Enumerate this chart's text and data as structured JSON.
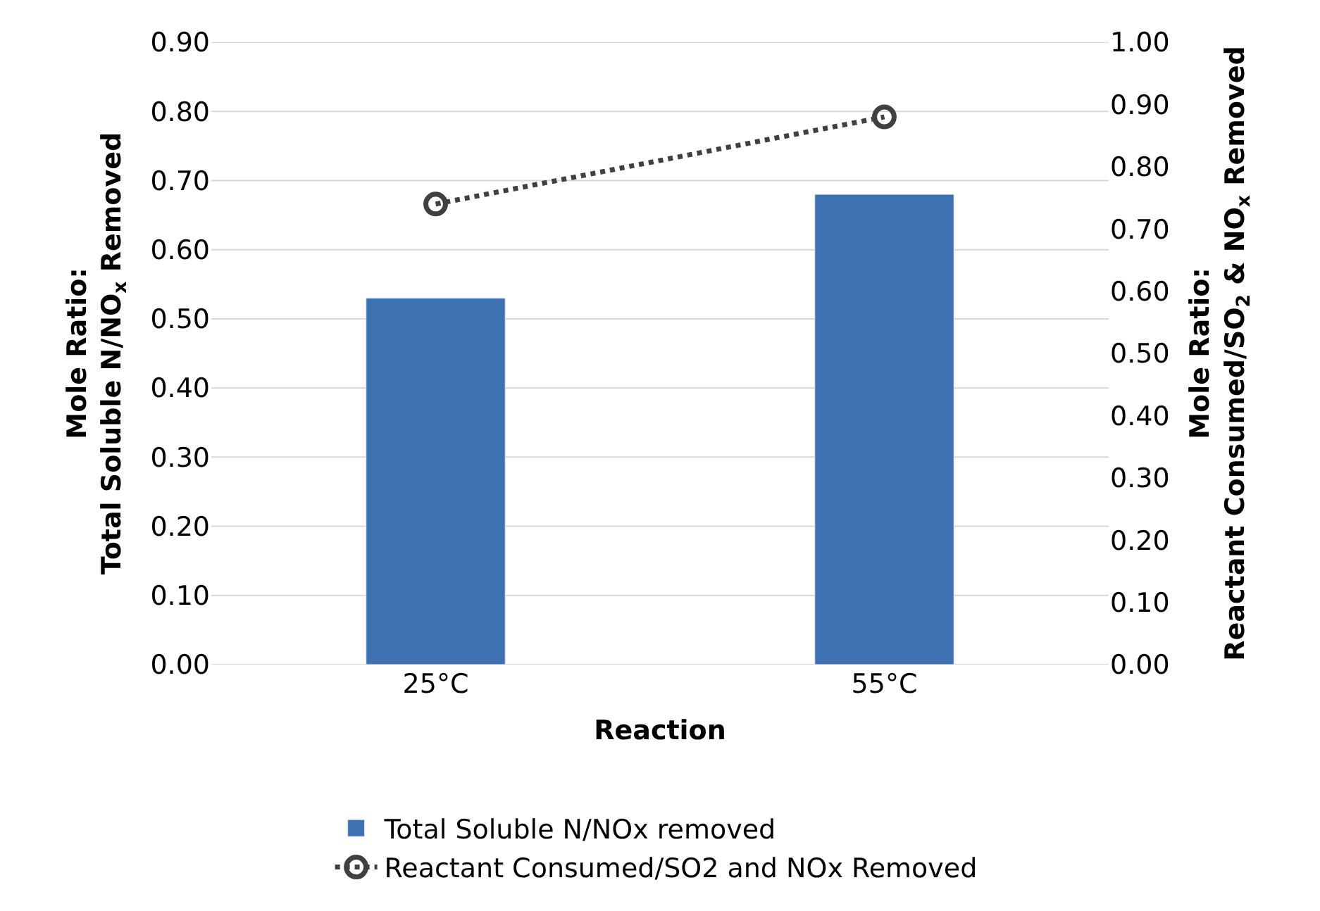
{
  "chart_data": {
    "type": "bar",
    "xlabel": "Reaction",
    "ylabel": "Mole Ratio:\nTotal Soluble N/NO$_{x}$ Removed",
    "y2label": "Mole Ratio:\nReactant Consumed/SO$_{2}$ & NO$_{x}$ Removed",
    "categories": [
      "25°C",
      "55°C"
    ],
    "series": [
      {
        "name": "Total Soluble N/NOx removed",
        "color": "#3e71b1",
        "values": [
          0.53,
          0.68
        ]
      },
      {
        "name": "Reactant Consumed/SO2 and NOx Removed",
        "type": "line",
        "axis": "y2",
        "color": "#404040",
        "values": [
          0.74,
          0.88
        ],
        "marker": "circle",
        "line_style": "dotted"
      }
    ],
    "ylim": [
      0,
      0.9
    ],
    "yticks": [
      {
        "value": 0,
        "label": "0.00"
      },
      {
        "value": 0.1,
        "label": "0.10"
      },
      {
        "value": 0.2,
        "label": "0.20"
      },
      {
        "value": 0.3,
        "label": "0.30"
      },
      {
        "value": 0.4,
        "label": "0.40"
      },
      {
        "value": 0.5,
        "label": "0.50"
      },
      {
        "value": 0.6,
        "label": "0.60"
      },
      {
        "value": 0.7,
        "label": "0.70"
      },
      {
        "value": 0.8,
        "label": "0.80"
      },
      {
        "value": 0.9,
        "label": "0.90"
      }
    ],
    "y2lim": [
      0,
      1.0
    ],
    "y2ticks": [
      {
        "value": 0,
        "label": "0.00"
      },
      {
        "value": 0.1,
        "label": "0.10"
      },
      {
        "value": 0.2,
        "label": "0.20"
      },
      {
        "value": 0.3,
        "label": "0.30"
      },
      {
        "value": 0.4,
        "label": "0.40"
      },
      {
        "value": 0.5,
        "label": "0.50"
      },
      {
        "value": 0.6,
        "label": "0.60"
      },
      {
        "value": 0.7,
        "label": "0.70"
      },
      {
        "value": 0.8,
        "label": "0.80"
      },
      {
        "value": 0.9,
        "label": "0.90"
      },
      {
        "value": 1.0,
        "label": "1.00"
      }
    ],
    "grid": "y",
    "legend": "bottom"
  }
}
